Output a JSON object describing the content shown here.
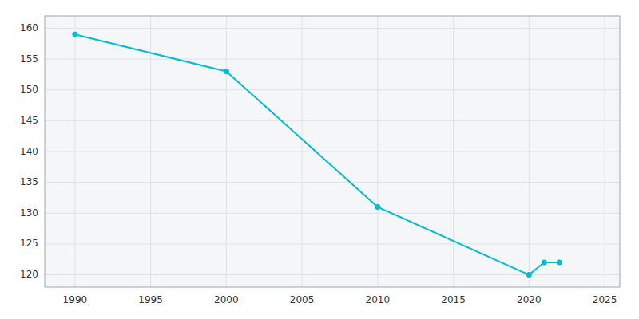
{
  "chart_data": {
    "type": "line",
    "x": [
      1990,
      2000,
      2010,
      2020,
      2021,
      2022
    ],
    "values": [
      159,
      153,
      131,
      120,
      122,
      122
    ],
    "color": "#00bcd4",
    "marker": "circle",
    "xlim": [
      1988,
      2026
    ],
    "ylim": [
      118,
      162
    ],
    "xticks": [
      1990,
      1995,
      2000,
      2005,
      2010,
      2015,
      2020,
      2025
    ],
    "yticks": [
      120,
      125,
      130,
      135,
      140,
      145,
      150,
      155,
      160
    ],
    "grid": true
  }
}
